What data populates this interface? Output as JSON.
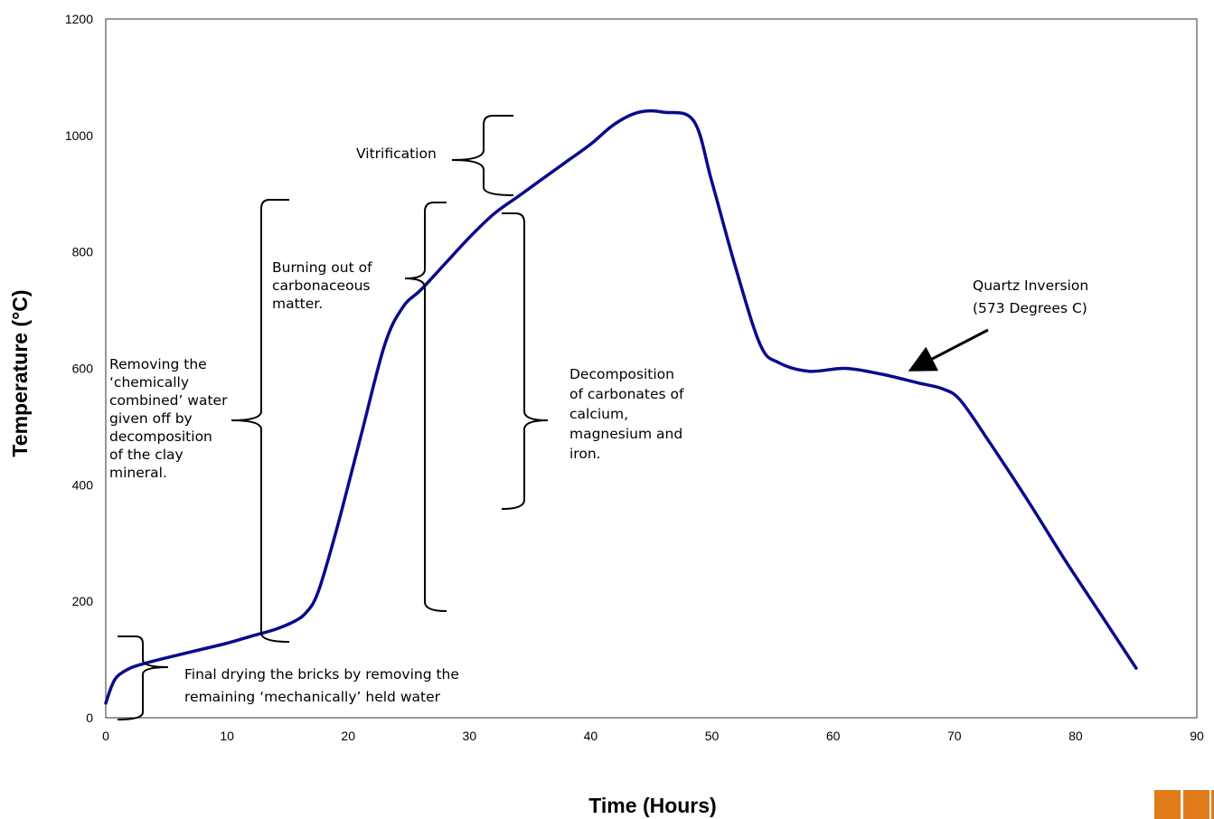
{
  "chart_data": {
    "type": "line",
    "title": "",
    "xlabel": "Time (Hours)",
    "ylabel": "Temperature (°C)",
    "xlim": [
      0,
      90
    ],
    "ylim": [
      0,
      1200
    ],
    "x_ticks": [
      "0",
      "10",
      "20",
      "30",
      "40",
      "50",
      "60",
      "70",
      "80",
      "90"
    ],
    "y_ticks": [
      "0",
      "200",
      "400",
      "600",
      "800",
      "1000",
      "1200"
    ],
    "grid": false,
    "legend": "none",
    "series_color": "#0a0a8c",
    "series": [
      {
        "x": [
          0,
          0.5,
          1,
          2,
          3,
          5,
          8,
          10,
          12,
          14,
          15.5,
          16.5,
          17.5,
          19,
          21,
          23,
          24.5,
          26,
          28,
          30,
          32,
          34,
          36,
          38,
          40,
          42,
          44,
          46,
          48.5,
          50,
          52,
          54,
          55.5,
          58,
          61,
          64,
          67,
          69,
          70.5,
          73,
          76,
          79,
          82,
          85
        ],
        "values": [
          25,
          55,
          72,
          85,
          92,
          103,
          118,
          128,
          140,
          152,
          165,
          180,
          215,
          320,
          480,
          640,
          705,
          735,
          780,
          825,
          865,
          895,
          925,
          955,
          985,
          1020,
          1040,
          1040,
          1025,
          920,
          770,
          640,
          610,
          595,
          600,
          590,
          575,
          565,
          545,
          470,
          375,
          275,
          180,
          85
        ]
      }
    ],
    "annotations": [
      {
        "lines": [
          "Vitrification"
        ]
      },
      {
        "lines": [
          "Burning out of",
          "carbonaceous",
          "matter."
        ]
      },
      {
        "lines": [
          "Removing the",
          "‘chemically",
          "combined’ water",
          "given off by",
          "decomposition",
          "of the clay",
          "mineral."
        ]
      },
      {
        "lines": [
          "Decomposition",
          "of carbonates of",
          "calcium,",
          "magnesium and",
          "iron."
        ]
      },
      {
        "lines": [
          "Quartz Inversion",
          "(573 Degrees C)"
        ]
      },
      {
        "lines": [
          "Final drying the bricks by removing the",
          "remaining ‘mechanically’ held water"
        ]
      }
    ]
  }
}
